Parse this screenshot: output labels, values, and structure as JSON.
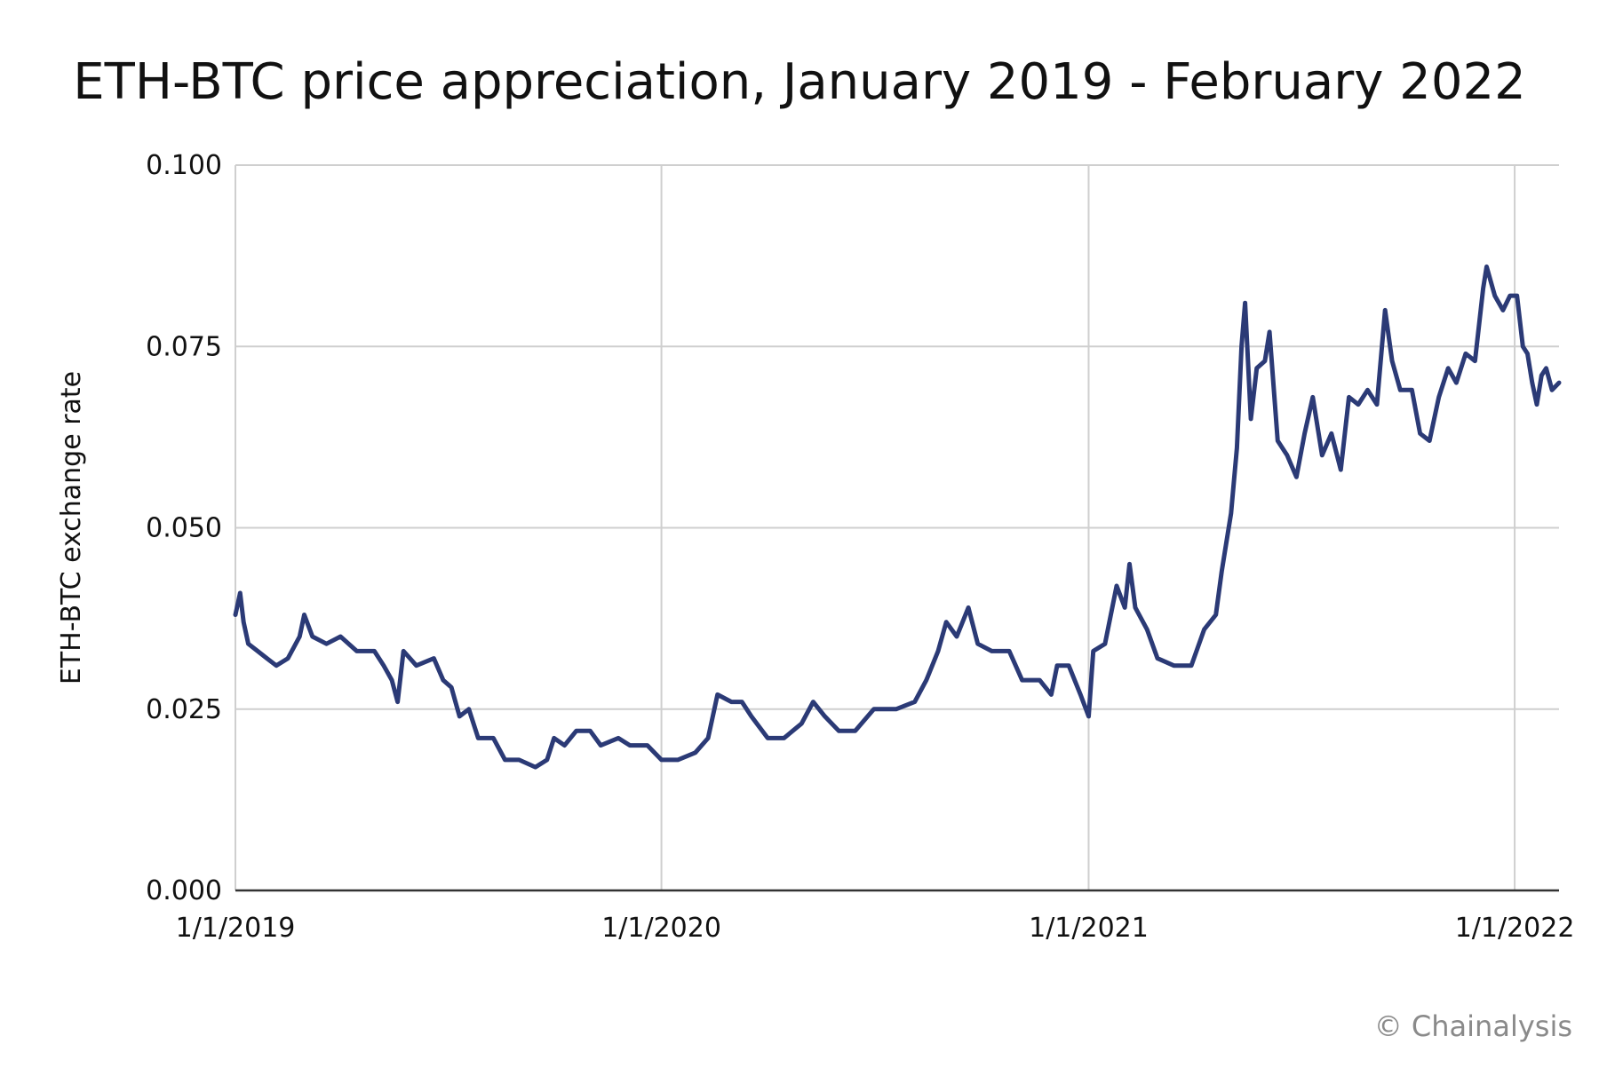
{
  "chart_data": {
    "type": "line",
    "title": "ETH-BTC price appreciation, January 2019 - February 2022",
    "xlabel": "",
    "ylabel": "ETH-BTC exchange rate",
    "x_ticks": [
      "1/1/2019",
      "1/1/2020",
      "1/1/2021",
      "1/1/2022"
    ],
    "y_ticks": [
      "0.000",
      "0.025",
      "0.050",
      "0.075",
      "0.100"
    ],
    "ylim": [
      0,
      0.1
    ],
    "xlim": [
      "2019-01-01",
      "2022-02-08"
    ],
    "grid": true,
    "series": [
      {
        "color": "#2b3a76",
        "points": [
          [
            "2019-01-01",
            0.038
          ],
          [
            "2019-01-05",
            0.041
          ],
          [
            "2019-01-08",
            0.037
          ],
          [
            "2019-01-12",
            0.034
          ],
          [
            "2019-01-20",
            0.033
          ],
          [
            "2019-01-28",
            0.032
          ],
          [
            "2019-02-05",
            0.031
          ],
          [
            "2019-02-15",
            0.032
          ],
          [
            "2019-02-25",
            0.035
          ],
          [
            "2019-03-01",
            0.038
          ],
          [
            "2019-03-08",
            0.035
          ],
          [
            "2019-03-20",
            0.034
          ],
          [
            "2019-04-01",
            0.035
          ],
          [
            "2019-04-15",
            0.033
          ],
          [
            "2019-04-30",
            0.033
          ],
          [
            "2019-05-08",
            0.031
          ],
          [
            "2019-05-15",
            0.029
          ],
          [
            "2019-05-20",
            0.026
          ],
          [
            "2019-05-25",
            0.033
          ],
          [
            "2019-06-05",
            0.031
          ],
          [
            "2019-06-20",
            0.032
          ],
          [
            "2019-06-28",
            0.029
          ],
          [
            "2019-07-05",
            0.028
          ],
          [
            "2019-07-12",
            0.024
          ],
          [
            "2019-07-20",
            0.025
          ],
          [
            "2019-07-28",
            0.021
          ],
          [
            "2019-08-10",
            0.021
          ],
          [
            "2019-08-20",
            0.018
          ],
          [
            "2019-09-01",
            0.018
          ],
          [
            "2019-09-15",
            0.017
          ],
          [
            "2019-09-25",
            0.018
          ],
          [
            "2019-10-01",
            0.021
          ],
          [
            "2019-10-10",
            0.02
          ],
          [
            "2019-10-20",
            0.022
          ],
          [
            "2019-11-01",
            0.022
          ],
          [
            "2019-11-10",
            0.02
          ],
          [
            "2019-11-25",
            0.021
          ],
          [
            "2019-12-05",
            0.02
          ],
          [
            "2019-12-20",
            0.02
          ],
          [
            "2020-01-01",
            0.018
          ],
          [
            "2020-01-15",
            0.018
          ],
          [
            "2020-01-30",
            0.019
          ],
          [
            "2020-02-10",
            0.021
          ],
          [
            "2020-02-18",
            0.027
          ],
          [
            "2020-03-01",
            0.026
          ],
          [
            "2020-03-10",
            0.026
          ],
          [
            "2020-03-18",
            0.024
          ],
          [
            "2020-04-01",
            0.021
          ],
          [
            "2020-04-15",
            0.021
          ],
          [
            "2020-04-30",
            0.023
          ],
          [
            "2020-05-10",
            0.026
          ],
          [
            "2020-05-20",
            0.024
          ],
          [
            "2020-06-01",
            0.022
          ],
          [
            "2020-06-15",
            0.022
          ],
          [
            "2020-07-01",
            0.025
          ],
          [
            "2020-07-20",
            0.025
          ],
          [
            "2020-08-05",
            0.026
          ],
          [
            "2020-08-15",
            0.029
          ],
          [
            "2020-08-25",
            0.033
          ],
          [
            "2020-09-01",
            0.037
          ],
          [
            "2020-09-10",
            0.035
          ],
          [
            "2020-09-20",
            0.039
          ],
          [
            "2020-09-28",
            0.034
          ],
          [
            "2020-10-10",
            0.033
          ],
          [
            "2020-10-25",
            0.033
          ],
          [
            "2020-11-05",
            0.029
          ],
          [
            "2020-11-20",
            0.029
          ],
          [
            "2020-11-30",
            0.027
          ],
          [
            "2020-12-05",
            0.031
          ],
          [
            "2020-12-15",
            0.031
          ],
          [
            "2020-12-25",
            0.027
          ],
          [
            "2021-01-01",
            0.024
          ],
          [
            "2021-01-05",
            0.033
          ],
          [
            "2021-01-15",
            0.034
          ],
          [
            "2021-01-25",
            0.042
          ],
          [
            "2021-02-01",
            0.039
          ],
          [
            "2021-02-05",
            0.045
          ],
          [
            "2021-02-10",
            0.039
          ],
          [
            "2021-02-20",
            0.036
          ],
          [
            "2021-03-01",
            0.032
          ],
          [
            "2021-03-15",
            0.031
          ],
          [
            "2021-03-30",
            0.031
          ],
          [
            "2021-04-10",
            0.036
          ],
          [
            "2021-04-20",
            0.038
          ],
          [
            "2021-04-25",
            0.044
          ],
          [
            "2021-05-03",
            0.052
          ],
          [
            "2021-05-08",
            0.061
          ],
          [
            "2021-05-12",
            0.075
          ],
          [
            "2021-05-15",
            0.081
          ],
          [
            "2021-05-20",
            0.065
          ],
          [
            "2021-05-25",
            0.072
          ],
          [
            "2021-06-01",
            0.073
          ],
          [
            "2021-06-05",
            0.077
          ],
          [
            "2021-06-12",
            0.062
          ],
          [
            "2021-06-20",
            0.06
          ],
          [
            "2021-06-28",
            0.057
          ],
          [
            "2021-07-05",
            0.063
          ],
          [
            "2021-07-12",
            0.068
          ],
          [
            "2021-07-20",
            0.06
          ],
          [
            "2021-07-28",
            0.063
          ],
          [
            "2021-08-05",
            0.058
          ],
          [
            "2021-08-12",
            0.068
          ],
          [
            "2021-08-20",
            0.067
          ],
          [
            "2021-08-28",
            0.069
          ],
          [
            "2021-09-05",
            0.067
          ],
          [
            "2021-09-12",
            0.08
          ],
          [
            "2021-09-18",
            0.073
          ],
          [
            "2021-09-25",
            0.069
          ],
          [
            "2021-10-05",
            0.069
          ],
          [
            "2021-10-12",
            0.063
          ],
          [
            "2021-10-20",
            0.062
          ],
          [
            "2021-10-28",
            0.068
          ],
          [
            "2021-11-05",
            0.072
          ],
          [
            "2021-11-12",
            0.07
          ],
          [
            "2021-11-20",
            0.074
          ],
          [
            "2021-11-28",
            0.073
          ],
          [
            "2021-12-05",
            0.083
          ],
          [
            "2021-12-08",
            0.086
          ],
          [
            "2021-12-15",
            0.082
          ],
          [
            "2021-12-22",
            0.08
          ],
          [
            "2021-12-28",
            0.082
          ],
          [
            "2022-01-03",
            0.082
          ],
          [
            "2022-01-08",
            0.075
          ],
          [
            "2022-01-12",
            0.074
          ],
          [
            "2022-01-16",
            0.07
          ],
          [
            "2022-01-20",
            0.067
          ],
          [
            "2022-01-24",
            0.071
          ],
          [
            "2022-01-28",
            0.072
          ],
          [
            "2022-02-02",
            0.069
          ],
          [
            "2022-02-08",
            0.07
          ]
        ]
      }
    ]
  },
  "footer": {
    "copyright": "© Chainalysis"
  }
}
